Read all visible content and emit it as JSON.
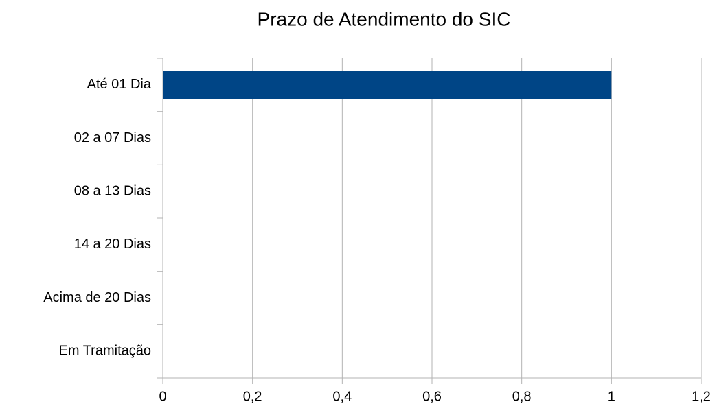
{
  "chart_data": {
    "type": "barh",
    "title": "Prazo de Atendimento do SIC",
    "categories": [
      "Até 01 Dia",
      "02 a 07 Dias",
      "08 a 13 Dias",
      "14 a 20 Dias",
      "Acima de 20 Dias",
      "Em Tramitação"
    ],
    "values": [
      1,
      0,
      0,
      0,
      0,
      0
    ],
    "color": "#004586",
    "xlim": [
      0,
      1.2
    ],
    "xticks": [
      0,
      {
        "value": 0.2,
        "label": "0,2"
      },
      {
        "value": 0.4,
        "label": "0,4"
      },
      {
        "value": 0.6,
        "label": "0,6"
      },
      {
        "value": 0.8,
        "label": "0,8"
      },
      1,
      {
        "value": 1.2,
        "label": "1,2"
      }
    ],
    "grid": true
  }
}
